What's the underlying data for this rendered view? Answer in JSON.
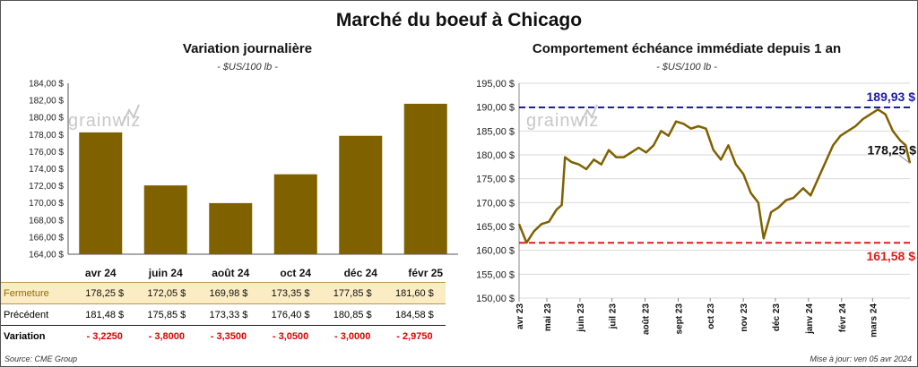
{
  "title": "Marché du boeuf à Chicago",
  "left": {
    "title": "Variation journalière",
    "subtitle": "- $US/100 lb -",
    "watermark": "grainwiz"
  },
  "right": {
    "title": "Comportement  échéance immédiate depuis 1 an",
    "subtitle": "- $US/100 lb -",
    "watermark": "grainwiz"
  },
  "table": {
    "rows": [
      {
        "label": "Fermeture",
        "values": [
          "178,25  $",
          "172,05  $",
          "169,98  $",
          "173,35  $",
          "177,85  $",
          "181,60  $"
        ]
      },
      {
        "label": "Précédent",
        "values": [
          "181,48  $",
          "175,85  $",
          "173,33  $",
          "176,40  $",
          "180,85  $",
          "184,58  $"
        ]
      },
      {
        "label": "Variation",
        "values": [
          "- 3,2250",
          "- 3,8000",
          "- 3,3500",
          "- 3,0500",
          "- 3,0000",
          "- 2,9750"
        ]
      }
    ]
  },
  "footer": {
    "source": "Source: CME Group",
    "updated": "Mise à jour: ven 05 avr 2024"
  },
  "colors": {
    "bar": "#806100",
    "line": "#806100",
    "high_line": "#1c1ca8",
    "low_line": "#e31b1b",
    "grid": "#d9d9d9"
  },
  "chart_data": [
    {
      "type": "bar",
      "categories": [
        "avr 24",
        "juin 24",
        "août 24",
        "oct 24",
        "déc 24",
        "févr 25"
      ],
      "values": [
        178.25,
        172.05,
        169.98,
        173.35,
        177.85,
        181.6
      ],
      "ylim": [
        164,
        184
      ],
      "yticks": [
        164,
        166,
        168,
        170,
        172,
        174,
        176,
        178,
        180,
        182,
        184
      ],
      "ytick_labels": [
        "164,00 $",
        "166,00 $",
        "168,00 $",
        "170,00 $",
        "172,00 $",
        "174,00 $",
        "176,00 $",
        "178,00 $",
        "180,00 $",
        "182,00 $",
        "184,00 $"
      ],
      "grid": false
    },
    {
      "type": "line",
      "x_start": "2023-04-05",
      "x_end": "2024-04-05",
      "xticks": [
        "2023-04-01",
        "2023-05-01",
        "2023-06-01",
        "2023-07-01",
        "2023-08-01",
        "2023-09-01",
        "2023-10-01",
        "2023-11-01",
        "2023-12-01",
        "2024-01-01",
        "2024-02-01",
        "2024-03-01"
      ],
      "xtick_labels": [
        "avr 23",
        "mai 23",
        "juin 23",
        "juil 23",
        "août 23",
        "sept 23",
        "oct 23",
        "nov 23",
        "déc 23",
        "janv 24",
        "févr 24",
        "mars 24"
      ],
      "ylim": [
        150,
        195
      ],
      "yticks": [
        150,
        155,
        160,
        165,
        170,
        175,
        180,
        185,
        190,
        195
      ],
      "ytick_labels": [
        "150,00 $",
        "155,00 $",
        "160,00 $",
        "165,00 $",
        "170,00 $",
        "175,00 $",
        "180,00 $",
        "185,00 $",
        "190,00 $",
        "195,00 $"
      ],
      "grid": true,
      "high": 189.93,
      "high_label": "189,93 $",
      "low": 161.58,
      "low_label": "161,58 $",
      "last": 178.25,
      "last_label": "178,25 $",
      "x": [
        "2023-04-05",
        "2023-04-12",
        "2023-04-19",
        "2023-04-26",
        "2023-05-03",
        "2023-05-10",
        "2023-05-15",
        "2023-05-18",
        "2023-05-24",
        "2023-05-31",
        "2023-06-07",
        "2023-06-14",
        "2023-06-21",
        "2023-06-28",
        "2023-07-05",
        "2023-07-12",
        "2023-07-19",
        "2023-07-26",
        "2023-08-02",
        "2023-08-09",
        "2023-08-16",
        "2023-08-23",
        "2023-08-30",
        "2023-09-06",
        "2023-09-13",
        "2023-09-20",
        "2023-09-27",
        "2023-10-04",
        "2023-10-11",
        "2023-10-18",
        "2023-10-25",
        "2023-11-01",
        "2023-11-08",
        "2023-11-15",
        "2023-11-20",
        "2023-11-27",
        "2023-12-04",
        "2023-12-11",
        "2023-12-18",
        "2023-12-27",
        "2024-01-03",
        "2024-01-10",
        "2024-01-17",
        "2024-01-24",
        "2024-01-31",
        "2024-02-07",
        "2024-02-14",
        "2024-02-21",
        "2024-02-28",
        "2024-03-06",
        "2024-03-13",
        "2024-03-20",
        "2024-03-27",
        "2024-04-01",
        "2024-04-05"
      ],
      "y": [
        165.5,
        161.6,
        164.0,
        165.5,
        166.0,
        168.5,
        169.5,
        179.5,
        178.5,
        178.0,
        177.0,
        179.0,
        178.0,
        181.0,
        179.5,
        179.5,
        180.5,
        181.5,
        180.5,
        182.0,
        185.0,
        184.0,
        187.0,
        186.5,
        185.5,
        186.0,
        185.5,
        181.0,
        179.0,
        182.0,
        178.0,
        176.0,
        172.0,
        170.0,
        162.5,
        168.0,
        169.0,
        170.5,
        171.0,
        173.0,
        171.5,
        175.0,
        178.5,
        182.0,
        184.0,
        185.0,
        186.0,
        187.5,
        188.5,
        189.5,
        188.5,
        185.0,
        183.0,
        182.0,
        178.25
      ]
    }
  ]
}
